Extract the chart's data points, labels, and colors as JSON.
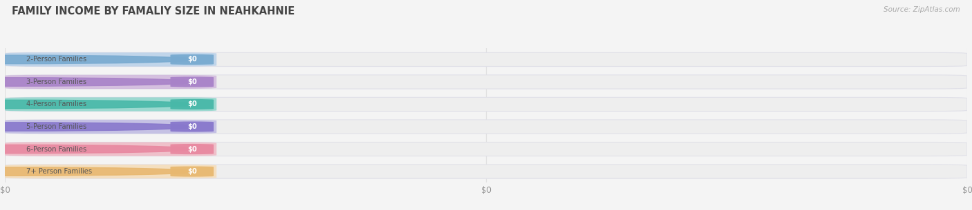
{
  "title": "FAMILY INCOME BY FAMALIY SIZE IN NEAHKAHNIE",
  "source_text": "Source: ZipAtlas.com",
  "categories": [
    "2-Person Families",
    "3-Person Families",
    "4-Person Families",
    "5-Person Families",
    "6-Person Families",
    "7+ Person Families"
  ],
  "values": [
    0,
    0,
    0,
    0,
    0,
    0
  ],
  "bar_colors": [
    "#a8c8e8",
    "#c8a8d8",
    "#70cec0",
    "#b0aae0",
    "#f0a8b8",
    "#f8d8a8"
  ],
  "bar_label_colors": [
    "#78aad0",
    "#a882c8",
    "#48b8a8",
    "#8878cc",
    "#e888a0",
    "#e8b870"
  ],
  "value_labels": [
    "$0",
    "$0",
    "$0",
    "$0",
    "$0",
    "$0"
  ],
  "x_tick_positions": [
    0.0,
    0.5,
    1.0
  ],
  "x_tick_labels": [
    "$0",
    "$0",
    "$0"
  ],
  "bg_color": "#f4f4f4",
  "bar_bg_color": "#eeeeee",
  "bar_bg_edge_color": "#e0e0e8",
  "title_color": "#444444",
  "source_color": "#aaaaaa",
  "label_text_color": "#555555",
  "value_text_color": "#ffffff",
  "grid_color": "#dddddd"
}
